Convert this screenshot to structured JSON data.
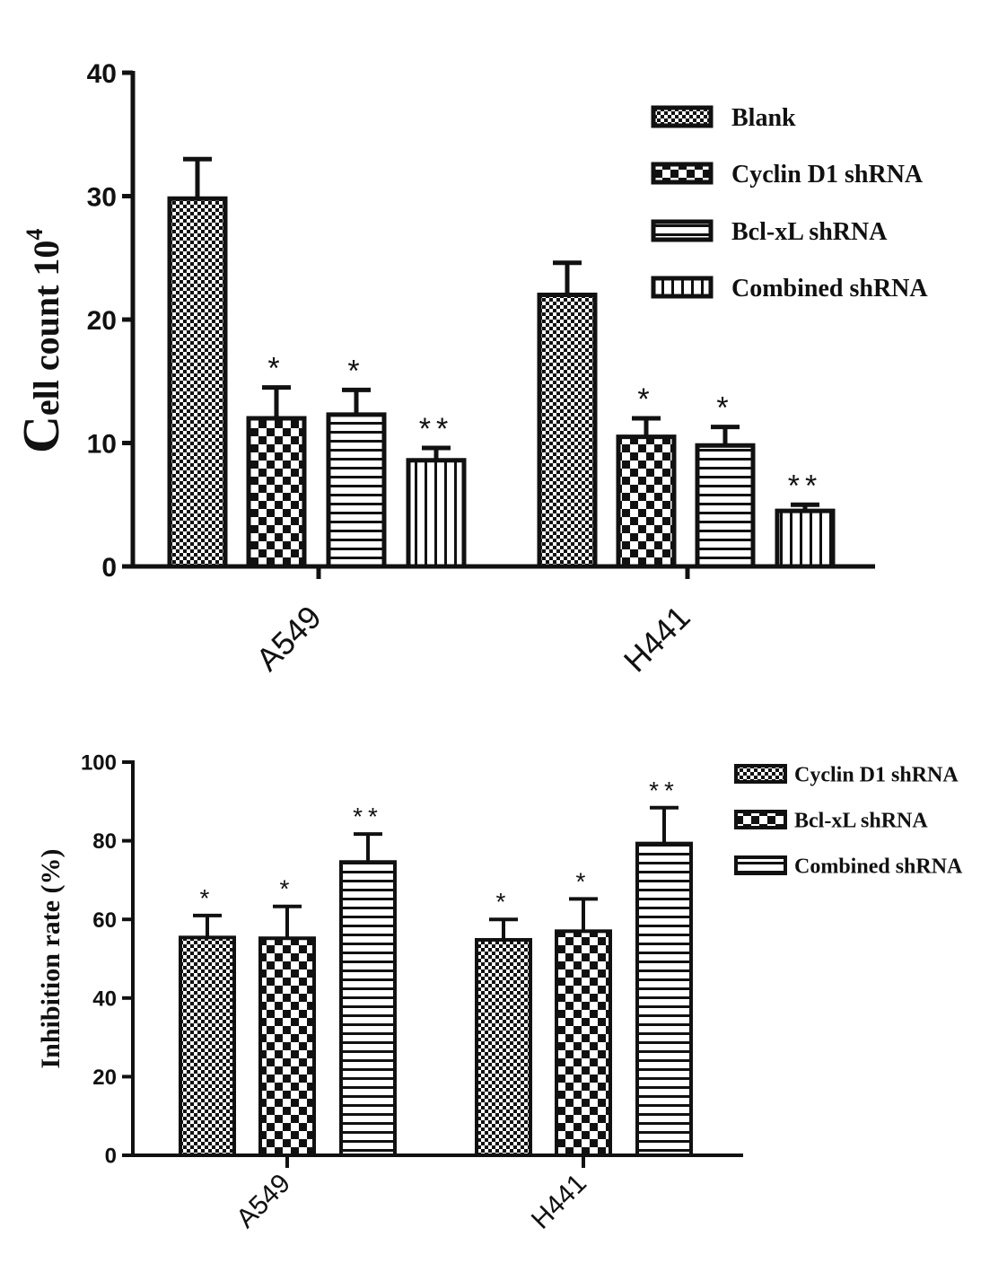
{
  "chart_data": [
    {
      "type": "bar",
      "ylabel_main": "ell count 10",
      "ylabel_cap": "C",
      "ylabel_sup": "4",
      "ylim": [
        0,
        40
      ],
      "yticks": [
        "0",
        "10",
        "20",
        "30",
        "40"
      ],
      "categories": [
        "A549",
        "H441"
      ],
      "legend_position": "top-right",
      "series": [
        {
          "name": "Blank",
          "pattern": "fine-checker",
          "values": [
            29.8,
            22.0
          ],
          "errors": [
            3.2,
            2.6
          ],
          "marks": [
            "",
            ""
          ]
        },
        {
          "name": "Cyclin D1 shRNA",
          "pattern": "checker",
          "values": [
            12.0,
            10.5
          ],
          "errors": [
            2.5,
            1.5
          ],
          "marks": [
            "*",
            "*"
          ]
        },
        {
          "name": "Bcl-xL shRNA",
          "pattern": "hstripes",
          "values": [
            12.3,
            9.8
          ],
          "errors": [
            2.0,
            1.5
          ],
          "marks": [
            "*",
            "*"
          ]
        },
        {
          "name": "Combined shRNA",
          "pattern": "vstripes",
          "values": [
            8.6,
            4.5
          ],
          "errors": [
            1.0,
            0.5
          ],
          "marks": [
            "**",
            "**"
          ]
        }
      ]
    },
    {
      "type": "bar",
      "ylabel_main": "Inhibition rate (%)",
      "ylim": [
        0,
        100
      ],
      "yticks": [
        "0",
        "20",
        "40",
        "60",
        "80",
        "100"
      ],
      "categories": [
        "A549",
        "H441"
      ],
      "legend_position": "top-right",
      "series": [
        {
          "name": "Cyclin D1 shRNA",
          "pattern": "fine-checker",
          "values": [
            55.4,
            54.8
          ],
          "errors": [
            5.6,
            5.2
          ],
          "marks": [
            "*",
            "*"
          ]
        },
        {
          "name": "Bcl-xL shRNA",
          "pattern": "checker",
          "values": [
            55.2,
            57.0
          ],
          "errors": [
            8.1,
            8.2
          ],
          "marks": [
            "*",
            "*"
          ]
        },
        {
          "name": "Combined shRNA",
          "pattern": "hstripes",
          "values": [
            74.6,
            79.3
          ],
          "errors": [
            7.1,
            9.1
          ],
          "marks": [
            "**",
            "**"
          ]
        }
      ]
    }
  ]
}
